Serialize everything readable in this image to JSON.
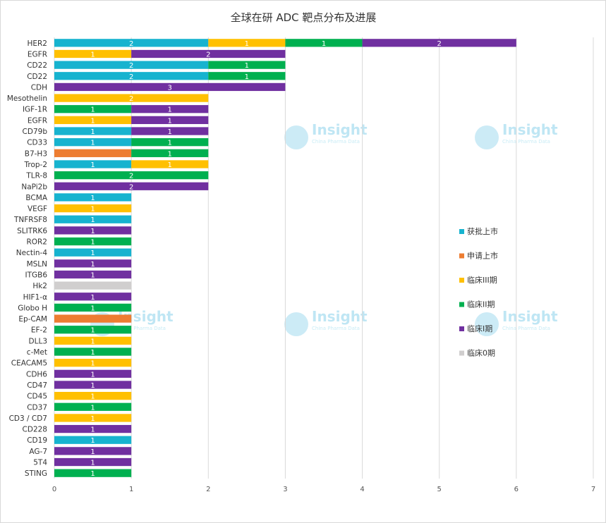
{
  "colors": {
    "approved": "#17b3cf",
    "filed": "#ed7d31",
    "phase3": "#ffc000",
    "phase2": "#00b050",
    "phase1": "#7030a0",
    "phase0": "#d0cece",
    "gridline": "#d9d9d9",
    "border": "#d9d9d9",
    "watermark": "#bfe6f4"
  },
  "watermark": {
    "text": "Insight",
    "subtext": "China Pharma Data"
  },
  "chart_data": {
    "type": "bar",
    "orientation": "horizontal",
    "stacked": true,
    "title": "全球在研 ADC 靶点分布及进展",
    "xlim": [
      0,
      7
    ],
    "xticks": [
      0,
      1,
      2,
      3,
      4,
      5,
      6,
      7
    ],
    "grid": true,
    "legend_position": "right",
    "categories": [
      "HER2",
      "EGFR",
      "CD22",
      "CD22",
      "CDH",
      "Mesothelin",
      "IGF-1R",
      "EGFR",
      "CD79b",
      "CD33",
      "B7-H3",
      "Trop-2",
      "TLR-8",
      "NaPi2b",
      "BCMA",
      "VEGF",
      "TNFRSF8",
      "SLITRK6",
      "ROR2",
      "Nectin-4",
      "MSLN",
      "ITGB6",
      "Hk2",
      "HIF1-α",
      "Globo H",
      "Ep-CAM",
      "EF-2",
      "DLL3",
      "c-Met",
      "CEACAM5",
      "CDH6",
      "CD47",
      "CD45",
      "CD37",
      "CD3 / CD7",
      "CD228",
      "CD19",
      "AG-7",
      "5T4",
      "STING"
    ],
    "series": [
      {
        "name": "获批上市",
        "key": "approved",
        "values": [
          2,
          0,
          2,
          2,
          0,
          0,
          0,
          0,
          1,
          1,
          0,
          1,
          0,
          0,
          1,
          0,
          1,
          0,
          0,
          1,
          0,
          0,
          0,
          0,
          0,
          0,
          0,
          0,
          0,
          0,
          0,
          0,
          0,
          0,
          0,
          0,
          1,
          0,
          0,
          0
        ]
      },
      {
        "name": "申请上市",
        "key": "filed",
        "values": [
          0,
          0,
          0,
          0,
          0,
          0,
          0,
          0,
          0,
          0,
          1,
          0,
          0,
          0,
          0,
          0,
          0,
          0,
          0,
          0,
          0,
          0,
          0,
          0,
          0,
          1,
          0,
          0,
          0,
          0,
          0,
          0,
          0,
          0,
          0,
          0,
          0,
          0,
          0,
          0
        ]
      },
      {
        "name": "临床III期",
        "key": "phase3",
        "values": [
          1,
          1,
          0,
          0,
          0,
          2,
          0,
          1,
          0,
          0,
          0,
          1,
          0,
          0,
          0,
          1,
          0,
          0,
          0,
          0,
          0,
          0,
          0,
          0,
          0,
          0,
          0,
          1,
          0,
          1,
          0,
          0,
          1,
          0,
          1,
          0,
          0,
          0,
          0,
          0
        ]
      },
      {
        "name": "临床II期",
        "key": "phase2",
        "values": [
          1,
          0,
          1,
          1,
          0,
          0,
          1,
          0,
          0,
          1,
          1,
          0,
          2,
          0,
          0,
          0,
          0,
          0,
          1,
          0,
          0,
          0,
          0,
          0,
          1,
          0,
          1,
          0,
          1,
          0,
          0,
          0,
          0,
          1,
          0,
          0,
          0,
          0,
          0,
          1
        ]
      },
      {
        "name": "临床I期",
        "key": "phase1",
        "values": [
          2,
          2,
          0,
          0,
          3,
          0,
          1,
          1,
          1,
          0,
          0,
          0,
          0,
          2,
          0,
          0,
          0,
          1,
          0,
          0,
          1,
          1,
          0,
          1,
          0,
          0,
          0,
          0,
          0,
          0,
          1,
          1,
          0,
          0,
          0,
          1,
          0,
          1,
          1,
          0
        ]
      },
      {
        "name": "临床0期",
        "key": "phase0",
        "values": [
          0,
          0,
          0,
          0,
          0,
          0,
          0,
          0,
          0,
          0,
          0,
          0,
          0,
          0,
          0,
          0,
          0,
          0,
          0,
          0,
          0,
          0,
          1,
          0,
          0,
          0,
          0,
          0,
          0,
          0,
          0,
          0,
          0,
          0,
          0,
          0,
          0,
          0,
          0,
          0
        ]
      }
    ]
  }
}
